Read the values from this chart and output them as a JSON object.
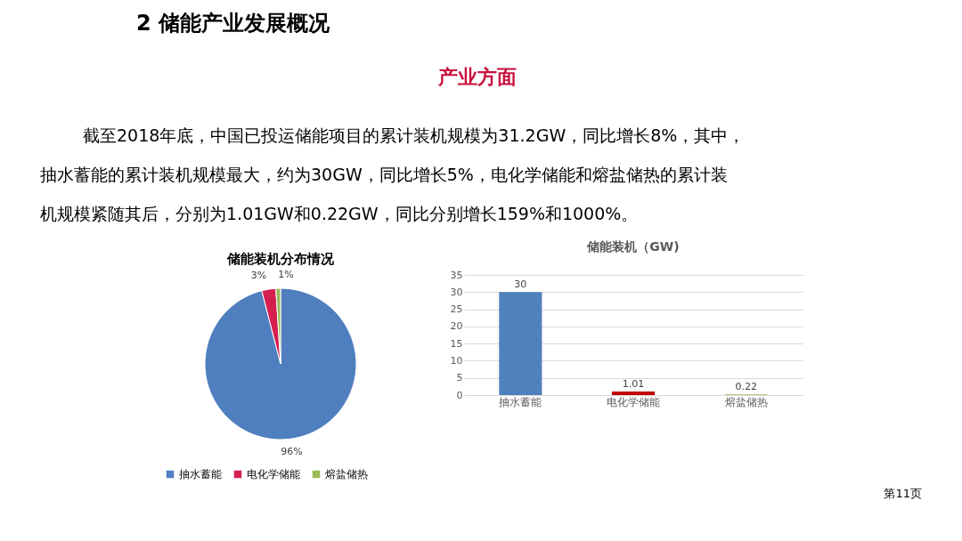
{
  "chart_data": [
    {
      "type": "pie",
      "title": "储能装机分布情况",
      "categories": [
        "抽水蓄能",
        "电化学储能",
        "熔盐储热"
      ],
      "values": [
        96,
        3,
        1
      ],
      "colors": [
        "#4f7fbf",
        "#d41f4f",
        "#9bbb59"
      ],
      "value_labels": [
        "96%",
        "3%",
        "1%"
      ],
      "legend": "bottom",
      "annotations": [
        "2  储能产业发展概况",
        "产业方面",
        "截至2018年底，中国已投运储能项目的累计装机规模为31.2GW，同比增长8%，其中，",
        "抽水蓄能的累计装机规模最大，约为30GW，同比增长5%，电化学储能和熔盐储热的累计装",
        "机规模紧随其后，分别为1.01GW和0.22GW，同比分别增长159%和1000%。",
        "第11页"
      ]
    },
    {
      "type": "bar",
      "title": "储能装机（GW)",
      "categories": [
        "抽水蓄能",
        "电化学储能",
        "熔盐储热"
      ],
      "values": [
        30,
        1.01,
        0.22
      ],
      "colors": [
        "#4f81bd",
        "#c00000",
        "#9bbb59"
      ],
      "ylim": [
        0,
        35
      ],
      "yticks": [
        0,
        5,
        10,
        15,
        20,
        25,
        30,
        35
      ],
      "grid": "y",
      "data_labels": true
    }
  ]
}
